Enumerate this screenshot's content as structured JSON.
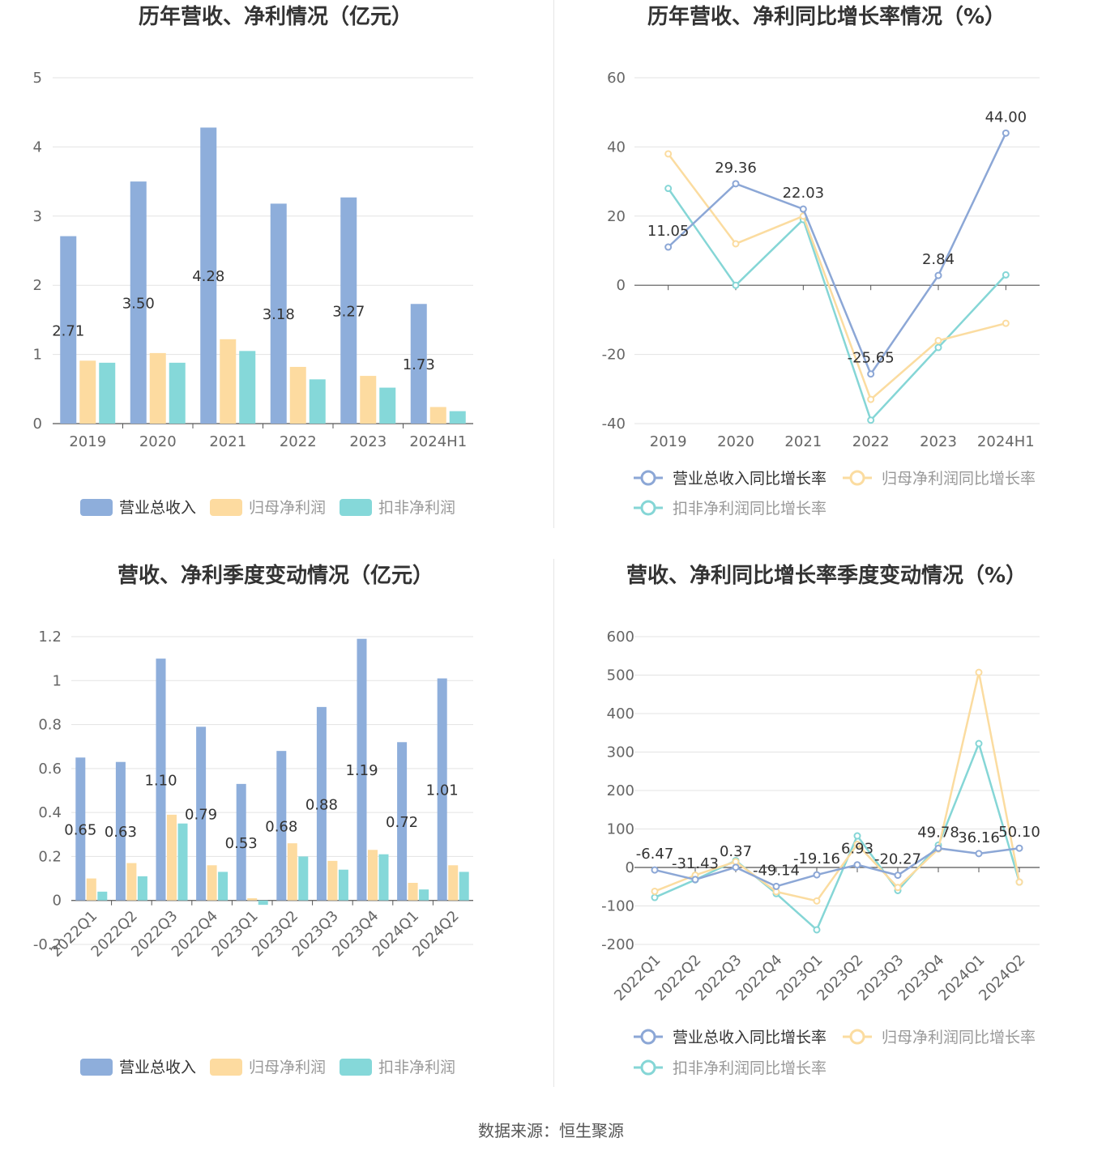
{
  "colors": {
    "revenue": "#8eaedb",
    "net_profit": "#fddba0",
    "deducted_profit": "#85d8d9",
    "revenue_line": "#8ca7d6",
    "net_line": "#fbdca0",
    "deducted_line": "#85d6d6"
  },
  "footer": {
    "source": "数据来源：恒生聚源"
  },
  "chart_data": [
    {
      "type": "bar",
      "title": "历年营收、净利情况（亿元）",
      "categories": [
        "2019",
        "2020",
        "2021",
        "2022",
        "2023",
        "2024H1"
      ],
      "ylim": [
        0,
        5
      ],
      "yticks": [
        0,
        1,
        2,
        3,
        4,
        5
      ],
      "series": [
        {
          "name": "营业总收入",
          "values": [
            2.71,
            3.5,
            4.28,
            3.18,
            3.27,
            1.73
          ],
          "labels": [
            "2.71",
            "3.50",
            "4.28",
            "3.18",
            "3.27",
            "1.73"
          ]
        },
        {
          "name": "归母净利润",
          "values": [
            0.91,
            1.02,
            1.22,
            0.82,
            0.69,
            0.24
          ]
        },
        {
          "name": "扣非净利润",
          "values": [
            0.88,
            0.88,
            1.05,
            0.64,
            0.52,
            0.18
          ]
        }
      ],
      "legend": "bottom",
      "grid": true
    },
    {
      "type": "line",
      "title": "历年营收、净利同比增长率情况（%）",
      "categories": [
        "2019",
        "2020",
        "2021",
        "2022",
        "2023",
        "2024H1"
      ],
      "ylim": [
        -40,
        60
      ],
      "yticks": [
        -40,
        -20,
        0,
        20,
        40,
        60
      ],
      "series": [
        {
          "name": "营业总收入同比增长率",
          "values": [
            11.05,
            29.36,
            22.03,
            -25.65,
            2.84,
            44.0
          ],
          "labels": [
            "11.05",
            "29.36",
            "22.03",
            "-25.65",
            "2.84",
            "44.00"
          ]
        },
        {
          "name": "归母净利润同比增长率",
          "values": [
            38,
            12,
            20,
            -33,
            -16,
            -11
          ]
        },
        {
          "name": "扣非净利润同比增长率",
          "values": [
            28,
            0,
            19,
            -39,
            -18,
            3
          ]
        }
      ],
      "legend": "bottom",
      "grid": true
    },
    {
      "type": "bar",
      "title": "营收、净利季度变动情况（亿元）",
      "categories": [
        "2022Q1",
        "2022Q2",
        "2022Q3",
        "2022Q4",
        "2023Q1",
        "2023Q2",
        "2023Q3",
        "2023Q4",
        "2024Q1",
        "2024Q2"
      ],
      "ylim": [
        -0.2,
        1.2
      ],
      "yticks": [
        "-0.2",
        "0",
        "0.2",
        "0.4",
        "0.6",
        "0.8",
        "1",
        "1.2"
      ],
      "series": [
        {
          "name": "营业总收入",
          "values": [
            0.65,
            0.63,
            1.1,
            0.79,
            0.53,
            0.68,
            0.88,
            1.19,
            0.72,
            1.01
          ],
          "labels": [
            "0.65",
            "0.63",
            "1.10",
            "0.79",
            "0.53",
            "0.68",
            "0.88",
            "1.19",
            "0.72",
            "1.01"
          ]
        },
        {
          "name": "归母净利润",
          "values": [
            0.1,
            0.17,
            0.39,
            0.16,
            0.01,
            0.26,
            0.18,
            0.23,
            0.08,
            0.16
          ]
        },
        {
          "name": "扣非净利润",
          "values": [
            0.04,
            0.11,
            0.35,
            0.13,
            -0.02,
            0.2,
            0.14,
            0.21,
            0.05,
            0.13
          ]
        }
      ],
      "legend": "bottom",
      "grid": true
    },
    {
      "type": "line",
      "title": "营收、净利同比增长率季度变动情况（%）",
      "categories": [
        "2022Q1",
        "2022Q2",
        "2022Q3",
        "2022Q4",
        "2023Q1",
        "2023Q2",
        "2023Q3",
        "2023Q4",
        "2024Q1",
        "2024Q2"
      ],
      "ylim": [
        -200,
        600
      ],
      "yticks": [
        -200,
        -100,
        0,
        100,
        200,
        300,
        400,
        500,
        600
      ],
      "series": [
        {
          "name": "营业总收入同比增长率",
          "values": [
            -6.47,
            -31.43,
            0.37,
            -49.14,
            -19.16,
            6.93,
            -20.27,
            49.78,
            36.16,
            50.1
          ],
          "labels": [
            "-6.47",
            "-31.43",
            "0.37",
            "-49.14",
            "-19.16",
            "6.93",
            "-20.27",
            "49.78",
            "36.16",
            "50.10"
          ]
        },
        {
          "name": "归母净利润同比增长率",
          "values": [
            -62,
            -20,
            15,
            -63,
            -87,
            60,
            -52,
            48,
            507,
            -38
          ]
        },
        {
          "name": "扣非净利润同比增长率",
          "values": [
            -78,
            -32,
            18,
            -68,
            -162,
            82,
            -60,
            58,
            322,
            -38
          ]
        }
      ],
      "legend": "bottom",
      "grid": true
    }
  ]
}
